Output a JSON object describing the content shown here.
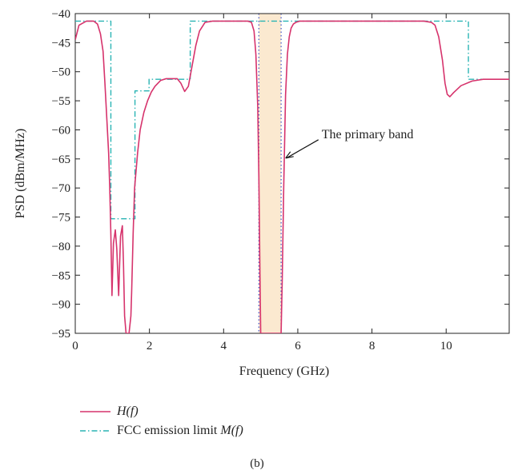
{
  "chart_data": {
    "type": "line",
    "xlabel": "Frequency (GHz)",
    "ylabel": "PSD (dBm/MHz)",
    "xlim": [
      0,
      11.7
    ],
    "ylim": [
      -95,
      -40
    ],
    "x_ticks": [
      0,
      2,
      4,
      6,
      8,
      10
    ],
    "x_tick_labels": [
      "0",
      "2",
      "4",
      "6",
      "8",
      "10"
    ],
    "y_ticks": [
      -40,
      -45,
      -50,
      -55,
      -60,
      -65,
      -70,
      -75,
      -80,
      -85,
      -90,
      -95
    ],
    "y_tick_labels": [
      "−40",
      "−45",
      "−50",
      "−55",
      "−60",
      "−65",
      "−70",
      "−75",
      "−80",
      "−85",
      "−90",
      "−95"
    ],
    "grid": false,
    "legend_position": "below",
    "annotation": {
      "text": "The primary band",
      "target": [
        5.65,
        -65
      ]
    },
    "band": {
      "start": 4.95,
      "end": 5.55,
      "color": "#fbe9d0"
    },
    "series": [
      {
        "name": "H(f)",
        "name_prefix": "",
        "name_math": "H(f)",
        "color": "#d6336c",
        "style": "solid",
        "x": [
          0,
          0.1,
          0.3,
          0.5,
          0.6,
          0.68,
          0.75,
          0.8,
          0.85,
          0.9,
          0.93,
          0.96,
          0.99,
          1.03,
          1.08,
          1.12,
          1.17,
          1.22,
          1.27,
          1.3,
          1.33,
          1.37,
          1.41,
          1.45,
          1.5,
          1.52,
          1.56,
          1.6,
          1.68,
          1.75,
          1.85,
          1.95,
          2.05,
          2.15,
          2.3,
          2.45,
          2.6,
          2.75,
          2.85,
          2.95,
          3.05,
          3.15,
          3.25,
          3.35,
          3.5,
          3.7,
          3.9,
          4.2,
          4.5,
          4.65,
          4.75,
          4.82,
          4.87,
          4.92,
          4.95,
          4.98,
          5.0,
          5.55,
          5.58,
          5.62,
          5.67,
          5.72,
          5.77,
          5.82,
          5.88,
          5.95,
          6.05,
          6.2,
          6.5,
          7.0,
          8.0,
          9.0,
          9.4,
          9.6,
          9.7,
          9.8,
          9.9,
          9.97,
          10.03,
          10.1,
          10.2,
          10.4,
          10.7,
          11.0,
          11.7
        ],
        "y": [
          -44.5,
          -42.0,
          -41.3,
          -41.3,
          -41.8,
          -43.5,
          -46.5,
          -52,
          -58,
          -64,
          -70,
          -78,
          -88.5,
          -79.5,
          -77.2,
          -80.5,
          -88.5,
          -78.3,
          -76.5,
          -83,
          -92,
          -95,
          -95,
          -95,
          -92,
          -88,
          -78,
          -70,
          -64,
          -60,
          -57,
          -55,
          -53.5,
          -52.5,
          -51.5,
          -51.2,
          -51.2,
          -51.2,
          -52,
          -53.4,
          -52.5,
          -49,
          -45.5,
          -43,
          -41.5,
          -41.3,
          -41.3,
          -41.3,
          -41.3,
          -41.3,
          -41.5,
          -43,
          -47,
          -56,
          -68,
          -85,
          -95,
          -95,
          -86,
          -70,
          -54,
          -47,
          -44,
          -42.5,
          -41.8,
          -41.5,
          -41.3,
          -41.3,
          -41.3,
          -41.3,
          -41.3,
          -41.3,
          -41.3,
          -41.5,
          -42,
          -44,
          -48,
          -52,
          -53.9,
          -54.3,
          -53.6,
          -52.4,
          -51.6,
          -51.3,
          -51.3
        ]
      },
      {
        "name": "FCC emission limit M(f)",
        "name_prefix": "FCC emission limit ",
        "name_math": "M(f)",
        "color": "#2ab4b4",
        "style": "dashdot",
        "x": [
          0,
          0.96,
          0.96,
          1.61,
          1.61,
          1.99,
          1.99,
          3.1,
          3.1,
          10.6,
          10.6,
          11.7
        ],
        "y": [
          -41.3,
          -41.3,
          -75.3,
          -75.3,
          -53.3,
          -53.3,
          -51.3,
          -51.3,
          -41.3,
          -41.3,
          -51.3,
          -51.3
        ]
      }
    ]
  },
  "caption": "(b)"
}
